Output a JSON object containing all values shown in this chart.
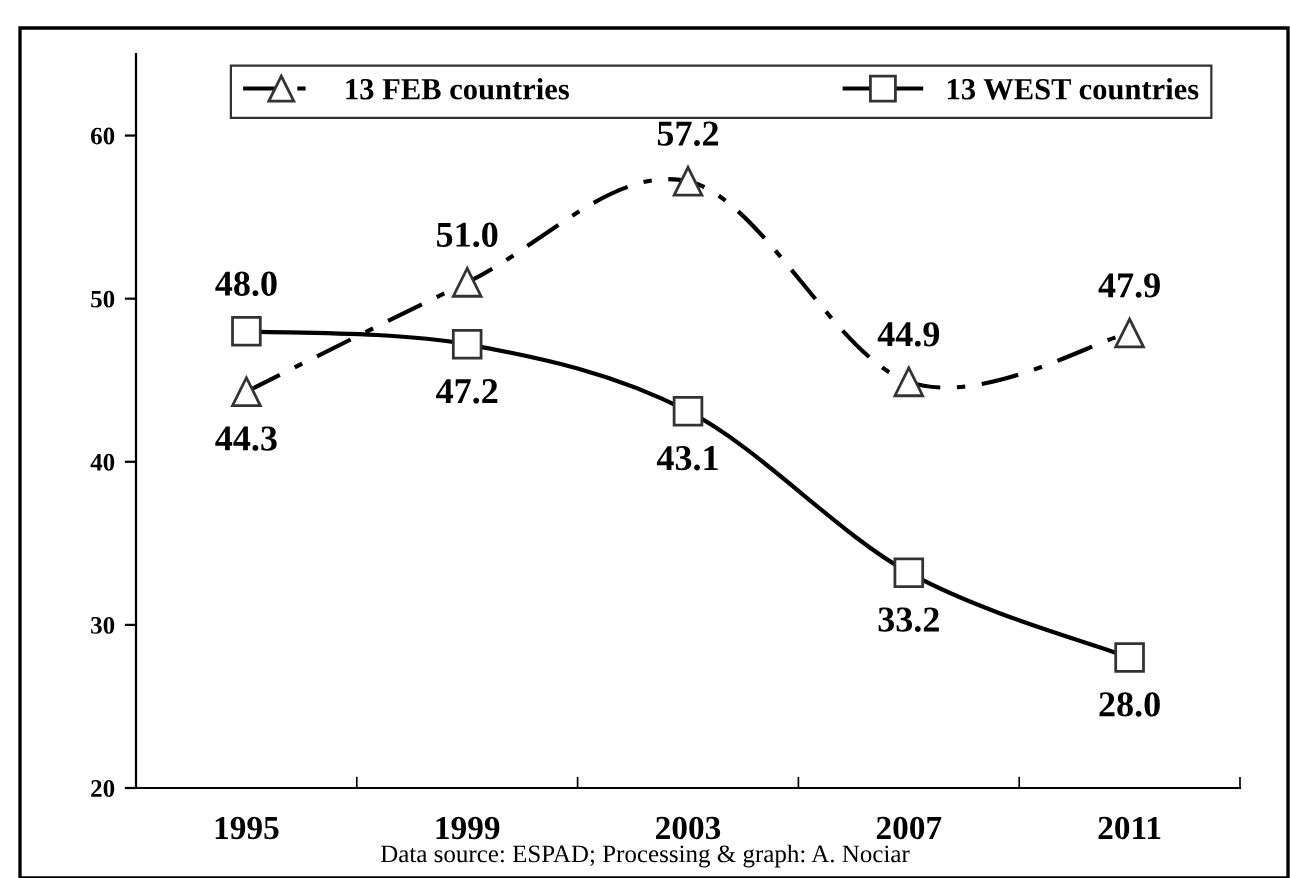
{
  "chart_data": {
    "type": "line",
    "categories": [
      "1995",
      "1999",
      "2003",
      "2007",
      "2011"
    ],
    "series": [
      {
        "name": "13 FEB countries",
        "color": "#000000",
        "marker": "triangle",
        "line_style": "dashed",
        "values": [
          44.3,
          51.0,
          57.2,
          44.9,
          47.9
        ],
        "value_labels": [
          "44.3",
          "51.0",
          "57.2",
          "44.9",
          "47.9"
        ]
      },
      {
        "name": "13 WEST countries",
        "color": "#000000",
        "marker": "square",
        "line_style": "solid",
        "values": [
          48.0,
          47.2,
          43.1,
          33.2,
          28.0
        ],
        "value_labels": [
          "48.0",
          "47.2",
          "43.1",
          "33.2",
          "28.0"
        ]
      }
    ],
    "ylim": [
      20,
      65
    ],
    "yticks": [
      20,
      30,
      40,
      50,
      60
    ],
    "grid": false,
    "legend": "top",
    "annotations": [
      "Data source: ESPAD; Processing & graph: A. Nociar"
    ]
  }
}
